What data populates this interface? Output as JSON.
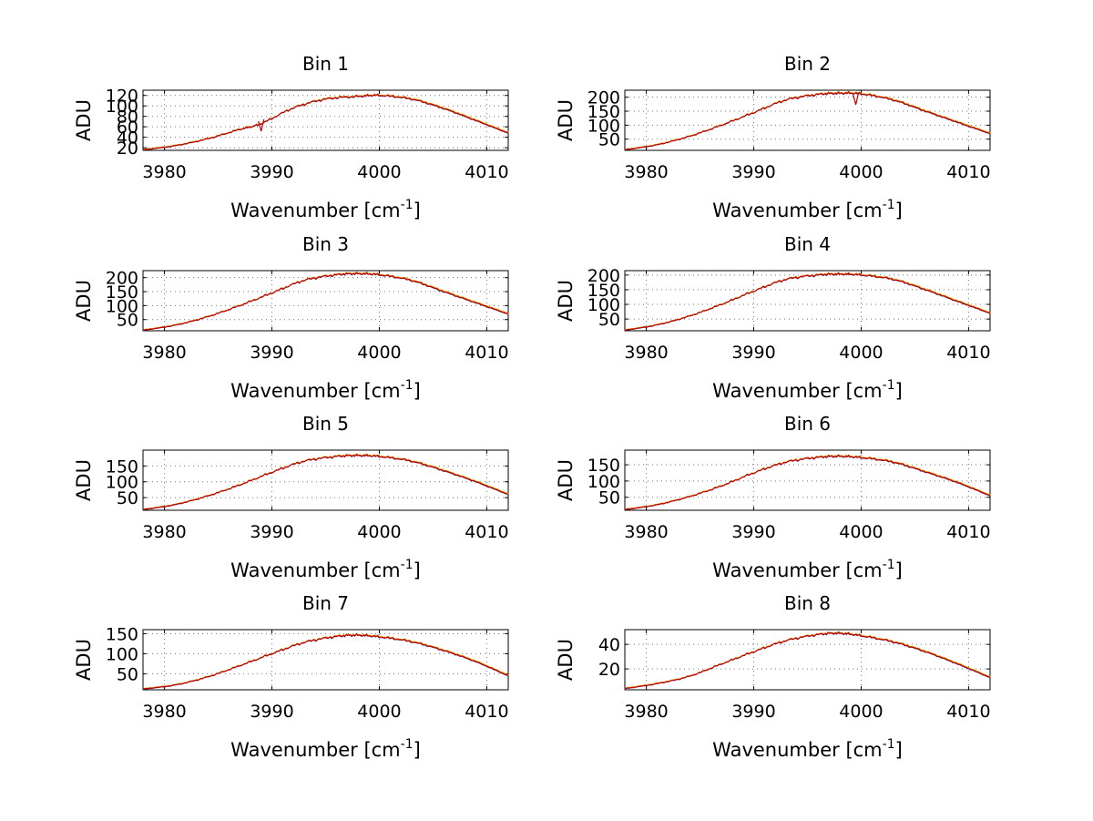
{
  "chart_data": [
    {
      "type": "line",
      "title": "Bin 1",
      "xlabel": "Wavenumber [cm",
      "xlabel_sup": "-1",
      "xlabel_suffix": "]",
      "ylabel": "ADU",
      "xlim": [
        3978,
        4012
      ],
      "ylim": [
        15,
        130
      ],
      "xticks": [
        3980,
        3990,
        4000,
        4010
      ],
      "yticks": [
        20,
        40,
        60,
        80,
        100,
        120
      ],
      "ytick_labels": [
        "20",
        "40",
        "60",
        "80",
        "100",
        "120"
      ],
      "series": [
        {
          "name": "spectrum",
          "color": "#c00000",
          "x": [
            3978,
            3981,
            3984,
            3987,
            3989,
            3992,
            3995,
            3998,
            4000,
            4003,
            4006,
            4009,
            4012
          ],
          "y": [
            16,
            24,
            37,
            55,
            66,
            96,
            113,
            118,
            120,
            113,
            95,
            72,
            48
          ]
        }
      ],
      "annotations": [
        {
          "x": 3989,
          "y": 55,
          "note": "absorption dip"
        }
      ]
    },
    {
      "type": "line",
      "title": "Bin 2",
      "xlabel": "Wavenumber [cm",
      "xlabel_sup": "-1",
      "xlabel_suffix": "]",
      "ylabel": "ADU",
      "xlim": [
        3978,
        4012
      ],
      "ylim": [
        10,
        225
      ],
      "xticks": [
        3980,
        3990,
        4000,
        4010
      ],
      "yticks": [
        50,
        100,
        150,
        200
      ],
      "ytick_labels": [
        "50",
        "100",
        "150",
        "200"
      ],
      "series": [
        {
          "name": "spectrum",
          "color": "#c00000",
          "x": [
            3978,
            3981,
            3984,
            3987,
            3990,
            3993,
            3996,
            3998,
            4000,
            4003,
            4006,
            4009,
            4012
          ],
          "y": [
            12,
            30,
            60,
            100,
            145,
            190,
            210,
            214,
            212,
            190,
            150,
            110,
            70
          ]
        }
      ],
      "annotations": [
        {
          "x": 3999.5,
          "y": 180,
          "note": "absorption dip"
        }
      ]
    },
    {
      "type": "line",
      "title": "Bin 3",
      "xlabel": "Wavenumber [cm",
      "xlabel_sup": "-1",
      "xlabel_suffix": "]",
      "ylabel": "ADU",
      "xlim": [
        3978,
        4012
      ],
      "ylim": [
        10,
        225
      ],
      "xticks": [
        3980,
        3990,
        4000,
        4010
      ],
      "yticks": [
        50,
        100,
        150,
        200
      ],
      "ytick_labels": [
        "50",
        "100",
        "150",
        "200"
      ],
      "series": [
        {
          "name": "spectrum",
          "color": "#c00000",
          "x": [
            3978,
            3981,
            3984,
            3987,
            3990,
            3993,
            3996,
            3998,
            4000,
            4003,
            4006,
            4009,
            4012
          ],
          "y": [
            12,
            30,
            60,
            100,
            145,
            190,
            210,
            214,
            210,
            190,
            150,
            110,
            70
          ]
        }
      ]
    },
    {
      "type": "line",
      "title": "Bin 4",
      "xlabel": "Wavenumber [cm",
      "xlabel_sup": "-1",
      "xlabel_suffix": "]",
      "ylabel": "ADU",
      "xlim": [
        3978,
        4012
      ],
      "ylim": [
        10,
        215
      ],
      "xticks": [
        3980,
        3990,
        4000,
        4010
      ],
      "yticks": [
        50,
        100,
        150,
        200
      ],
      "ytick_labels": [
        "50",
        "100",
        "150",
        "200"
      ],
      "series": [
        {
          "name": "spectrum",
          "color": "#c00000",
          "x": [
            3978,
            3981,
            3984,
            3987,
            3990,
            3993,
            3996,
            3998,
            4000,
            4003,
            4006,
            4009,
            4012
          ],
          "y": [
            12,
            30,
            60,
            100,
            145,
            185,
            200,
            203,
            200,
            185,
            150,
            110,
            70
          ]
        }
      ]
    },
    {
      "type": "line",
      "title": "Bin 5",
      "xlabel": "Wavenumber [cm",
      "xlabel_sup": "-1",
      "xlabel_suffix": "]",
      "ylabel": "ADU",
      "xlim": [
        3978,
        4012
      ],
      "ylim": [
        10,
        200
      ],
      "xticks": [
        3980,
        3990,
        4000,
        4010
      ],
      "yticks": [
        50,
        100,
        150
      ],
      "ytick_labels": [
        "50",
        "100",
        "150"
      ],
      "series": [
        {
          "name": "spectrum",
          "color": "#c00000",
          "x": [
            3978,
            3981,
            3984,
            3987,
            3990,
            3993,
            3996,
            3998,
            4000,
            4003,
            4006,
            4009,
            4012
          ],
          "y": [
            12,
            28,
            55,
            90,
            130,
            165,
            180,
            183,
            180,
            165,
            135,
            100,
            60
          ]
        }
      ]
    },
    {
      "type": "line",
      "title": "Bin 6",
      "xlabel": "Wavenumber [cm",
      "xlabel_sup": "-1",
      "xlabel_suffix": "]",
      "ylabel": "ADU",
      "xlim": [
        3978,
        4012
      ],
      "ylim": [
        10,
        195
      ],
      "xticks": [
        3980,
        3990,
        4000,
        4010
      ],
      "yticks": [
        50,
        100,
        150
      ],
      "ytick_labels": [
        "50",
        "100",
        "150"
      ],
      "series": [
        {
          "name": "spectrum",
          "color": "#c00000",
          "x": [
            3978,
            3981,
            3984,
            3987,
            3990,
            3993,
            3996,
            3998,
            4000,
            4003,
            4006,
            4009,
            4012
          ],
          "y": [
            12,
            27,
            52,
            85,
            125,
            158,
            173,
            176,
            172,
            158,
            128,
            95,
            55
          ]
        }
      ]
    },
    {
      "type": "line",
      "title": "Bin 7",
      "xlabel": "Wavenumber [cm",
      "xlabel_sup": "-1",
      "xlabel_suffix": "]",
      "ylabel": "ADU",
      "xlim": [
        3978,
        4012
      ],
      "ylim": [
        10,
        160
      ],
      "xticks": [
        3980,
        3990,
        4000,
        4010
      ],
      "yticks": [
        50,
        100,
        150
      ],
      "ytick_labels": [
        "50",
        "100",
        "150"
      ],
      "series": [
        {
          "name": "spectrum",
          "color": "#c00000",
          "x": [
            3978,
            3981,
            3984,
            3987,
            3990,
            3993,
            3996,
            3998,
            4000,
            4003,
            4006,
            4009,
            4012
          ],
          "y": [
            12,
            22,
            42,
            70,
            100,
            128,
            143,
            146,
            142,
            130,
            108,
            80,
            45
          ]
        }
      ]
    },
    {
      "type": "line",
      "title": "Bin 8",
      "xlabel": "Wavenumber [cm",
      "xlabel_sup": "-1",
      "xlabel_suffix": "]",
      "ylabel": "ADU",
      "xlim": [
        3978,
        4012
      ],
      "ylim": [
        3,
        52
      ],
      "xticks": [
        3980,
        3990,
        4000,
        4010
      ],
      "yticks": [
        20,
        40
      ],
      "ytick_labels": [
        "20",
        "40"
      ],
      "series": [
        {
          "name": "spectrum",
          "color": "#c00000",
          "x": [
            3978,
            3981,
            3984,
            3987,
            3990,
            3993,
            3996,
            3998,
            4000,
            4003,
            4006,
            4009,
            4012
          ],
          "y": [
            4,
            8,
            14,
            24,
            34,
            43,
            48,
            49,
            47,
            42,
            34,
            24,
            13
          ]
        }
      ]
    }
  ]
}
